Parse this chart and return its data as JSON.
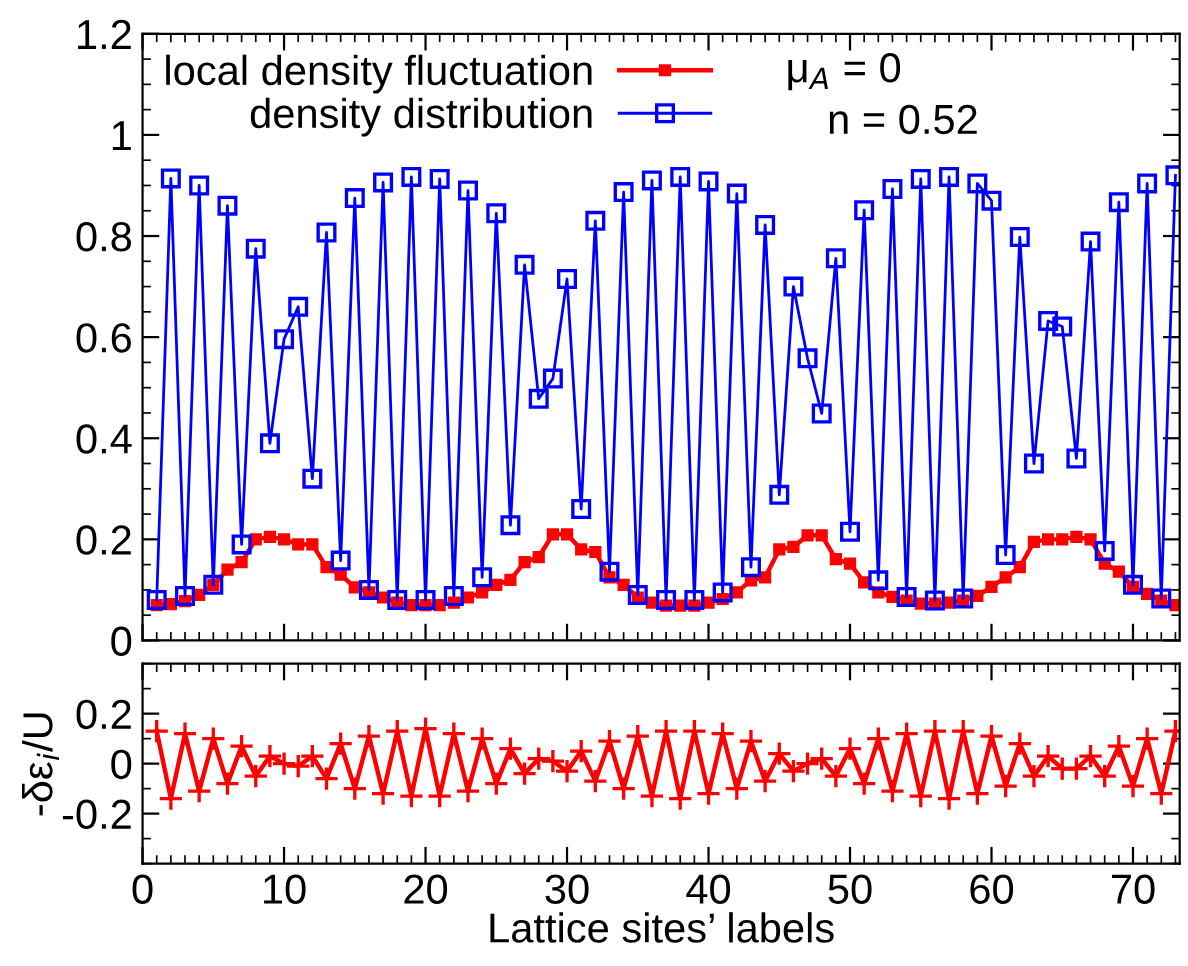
{
  "chart_data": [
    {
      "type": "line",
      "x": [
        1,
        2,
        3,
        4,
        5,
        6,
        7,
        8,
        9,
        10,
        11,
        12,
        13,
        14,
        15,
        16,
        17,
        18,
        19,
        20,
        21,
        22,
        23,
        24,
        25,
        26,
        27,
        28,
        29,
        30,
        31,
        32,
        33,
        34,
        35,
        36,
        37,
        38,
        39,
        40,
        41,
        42,
        43,
        44,
        45,
        46,
        47,
        48,
        49,
        50,
        51,
        52,
        53,
        54,
        55,
        56,
        57,
        58,
        59,
        60,
        61,
        62,
        63,
        64,
        65,
        66,
        67,
        68,
        69,
        70,
        71,
        72,
        73
      ],
      "series": [
        {
          "name": "local density fluctuation",
          "color": "#ff0000",
          "marker": "square",
          "values": [
            0.07,
            0.072,
            0.078,
            0.09,
            0.11,
            0.14,
            0.155,
            0.2,
            0.205,
            0.2,
            0.19,
            0.19,
            0.145,
            0.13,
            0.105,
            0.095,
            0.085,
            0.075,
            0.07,
            0.07,
            0.07,
            0.075,
            0.085,
            0.095,
            0.11,
            0.12,
            0.155,
            0.165,
            0.21,
            0.21,
            0.18,
            0.175,
            0.125,
            0.11,
            0.085,
            0.075,
            0.069,
            0.069,
            0.069,
            0.075,
            0.082,
            0.095,
            0.119,
            0.125,
            0.18,
            0.185,
            0.208,
            0.208,
            0.161,
            0.152,
            0.115,
            0.095,
            0.086,
            0.079,
            0.073,
            0.073,
            0.075,
            0.079,
            0.088,
            0.106,
            0.125,
            0.145,
            0.195,
            0.2,
            0.2,
            0.205,
            0.2,
            0.152,
            0.136,
            0.106,
            0.092,
            0.079,
            0.07
          ]
        },
        {
          "name": "density distribution",
          "color": "#0000ff",
          "marker": "square",
          "values": [
            0.08,
            0.914,
            0.088,
            0.9,
            0.11,
            0.86,
            0.19,
            0.775,
            0.39,
            0.596,
            0.66,
            0.32,
            0.807,
            0.158,
            0.875,
            0.1,
            0.906,
            0.08,
            0.917,
            0.08,
            0.913,
            0.088,
            0.89,
            0.125,
            0.845,
            0.228,
            0.743,
            0.478,
            0.518,
            0.715,
            0.26,
            0.83,
            0.136,
            0.887,
            0.09,
            0.91,
            0.08,
            0.917,
            0.08,
            0.908,
            0.095,
            0.884,
            0.145,
            0.822,
            0.288,
            0.7,
            0.558,
            0.449,
            0.756,
            0.215,
            0.851,
            0.119,
            0.893,
            0.086,
            0.913,
            0.079,
            0.917,
            0.083,
            0.904,
            0.87,
            0.169,
            0.798,
            0.35,
            0.632,
            0.621,
            0.36,
            0.789,
            0.177,
            0.867,
            0.11,
            0.904,
            0.083,
            0.92
          ]
        }
      ],
      "xlim": [
        0,
        73.3
      ],
      "ylim": [
        0,
        1.2
      ],
      "yticks": [
        0,
        0.2,
        0.4,
        0.6,
        0.8,
        1,
        1.2
      ],
      "tick_labels": "y",
      "legend": "top left",
      "grid": false,
      "annotations": [
        "μ$_{A}$ = 0",
        "n = 0.52"
      ]
    },
    {
      "type": "line",
      "x": [
        1,
        2,
        3,
        4,
        5,
        6,
        7,
        8,
        9,
        10,
        11,
        12,
        13,
        14,
        15,
        16,
        17,
        18,
        19,
        20,
        21,
        22,
        23,
        24,
        25,
        26,
        27,
        28,
        29,
        30,
        31,
        32,
        33,
        34,
        35,
        36,
        37,
        38,
        39,
        40,
        41,
        42,
        43,
        44,
        45,
        46,
        47,
        48,
        49,
        50,
        51,
        52,
        53,
        54,
        55,
        56,
        57,
        58,
        59,
        60,
        61,
        62,
        63,
        64,
        65,
        66,
        67,
        68,
        69,
        70,
        71,
        72,
        73
      ],
      "series": [
        {
          "color": "#ff0000",
          "marker": "cross",
          "values": [
            0.13,
            -0.14,
            0.12,
            -0.11,
            0.1,
            -0.08,
            0.07,
            -0.05,
            0.03,
            0.0,
            -0.01,
            0.03,
            -0.06,
            0.08,
            -0.1,
            0.11,
            -0.12,
            0.13,
            -0.13,
            0.14,
            -0.13,
            0.12,
            -0.11,
            0.1,
            -0.08,
            0.06,
            -0.04,
            0.02,
            0.01,
            -0.03,
            0.05,
            -0.07,
            0.09,
            -0.1,
            0.11,
            -0.13,
            0.13,
            -0.14,
            0.13,
            -0.12,
            0.12,
            -0.1,
            0.09,
            -0.07,
            0.04,
            -0.03,
            0.0,
            0.02,
            -0.05,
            0.06,
            -0.08,
            0.1,
            -0.11,
            0.12,
            -0.13,
            0.13,
            -0.14,
            0.13,
            -0.12,
            0.11,
            -0.09,
            0.08,
            -0.05,
            0.03,
            -0.02,
            -0.02,
            0.03,
            -0.05,
            0.07,
            -0.09,
            0.1,
            -0.12,
            0.13
          ]
        }
      ],
      "xlim": [
        0,
        73.3
      ],
      "xticks": [
        0,
        10,
        20,
        30,
        40,
        50,
        60,
        70
      ],
      "ylim": [
        -0.4,
        0.4
      ],
      "yticks": [
        -0.2,
        0,
        0.2
      ],
      "xlabel": "Lattice sites’ labels",
      "ylabel": "-δε$_{i}$/U",
      "grid": false
    }
  ]
}
